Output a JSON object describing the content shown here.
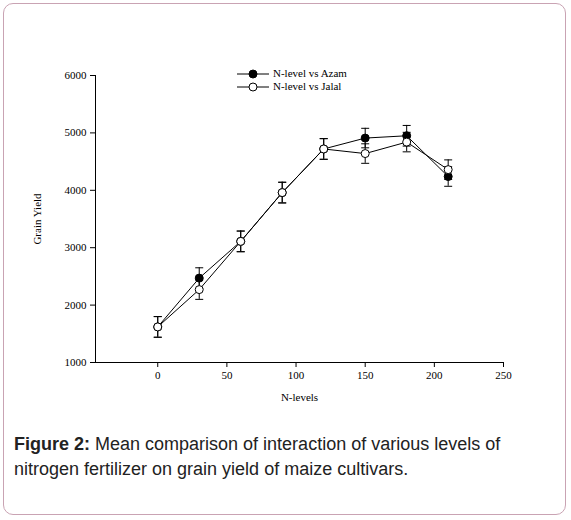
{
  "chart_data": {
    "type": "line",
    "title": "Figure 2: Mean comparison of interaction of various levels of nitrogen fertilizer on grain yield of maize cultivars.",
    "x_label": "N-levels",
    "y_label": "Grain Yield",
    "x": [
      0,
      30,
      60,
      90,
      120,
      150,
      180,
      210
    ],
    "series": [
      {
        "name": "N-level vs Azam",
        "color": "#000000",
        "marker": "filled_circle",
        "line_style": "solid",
        "values": [
          1620,
          2470,
          3110,
          3960,
          4720,
          4910,
          4950,
          4240
        ],
        "errors": [
          180,
          180,
          180,
          180,
          180,
          170,
          180,
          170
        ]
      },
      {
        "name": "N-level vs Jalal",
        "color": "#000000",
        "marker": "open_circle",
        "line_style": "solid",
        "values": [
          1620,
          2270,
          3110,
          3960,
          4720,
          4640,
          4840,
          4360
        ],
        "errors": [
          180,
          170,
          180,
          180,
          180,
          170,
          170,
          170
        ]
      }
    ],
    "xlim": [
      -45,
      250
    ],
    "xticks": [
      0,
      50,
      100,
      150,
      200,
      250
    ],
    "ylim": [
      1000,
      6000
    ],
    "yticks": [
      1000,
      2000,
      3000,
      4000,
      5000,
      6000
    ],
    "grid": false,
    "legend": "top"
  }
}
